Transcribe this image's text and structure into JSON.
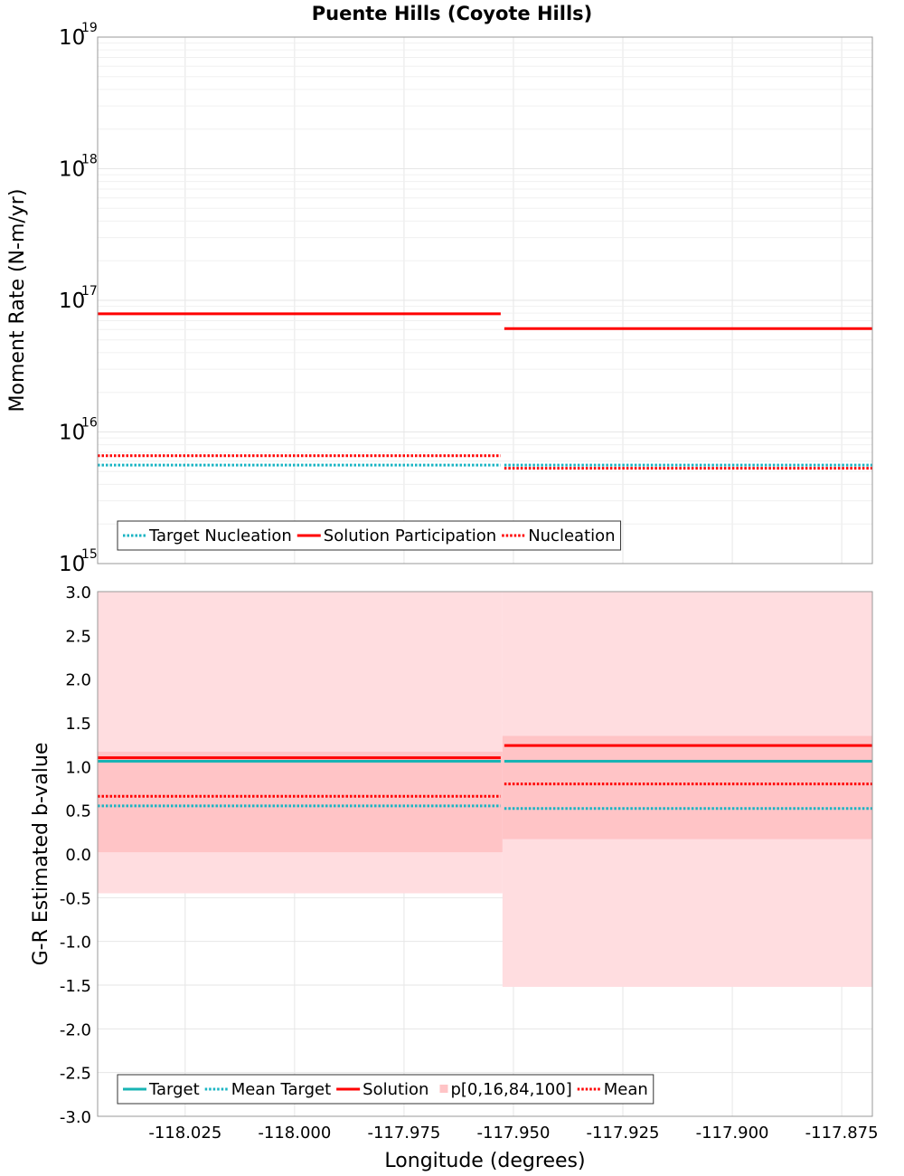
{
  "chart_data": [
    {
      "type": "line",
      "title": "Puente Hills (Coyote Hills)",
      "ylabel": "Moment Rate (N-m/yr)",
      "yscale": "log",
      "ylim": [
        1000000000000000.0,
        1e+19
      ],
      "xlim": [
        -118.045,
        -117.868
      ],
      "y_tick_labels": [
        {
          "base": "10",
          "exp": "15",
          "value": 1000000000000000.0
        },
        {
          "base": "10",
          "exp": "16",
          "value": 1e+16
        },
        {
          "base": "10",
          "exp": "17",
          "value": 1e+17
        },
        {
          "base": "10",
          "exp": "18",
          "value": 1e+18
        },
        {
          "base": "10",
          "exp": "19",
          "value": 1e+19
        }
      ],
      "series": [
        {
          "name": "Target Nucleation",
          "style": "dotted",
          "color": "#19b4c3",
          "segments": [
            {
              "x": [
                -118.045,
                -117.9525
              ],
              "y": 5600000000000000.0
            },
            {
              "x": [
                -117.9525,
                -117.868
              ],
              "y": 5600000000000000.0
            }
          ]
        },
        {
          "name": "Solution Participation",
          "style": "solid",
          "color": "#ff0000",
          "segments": [
            {
              "x": [
                -118.045,
                -117.9525
              ],
              "y": 7.9e+16
            },
            {
              "x": [
                -117.9525,
                -117.868
              ],
              "y": 6.1e+16
            }
          ]
        },
        {
          "name": "Nucleation",
          "style": "dotted",
          "color": "#ff0000",
          "segments": [
            {
              "x": [
                -118.045,
                -117.9525
              ],
              "y": 6600000000000000.0
            },
            {
              "x": [
                -117.9525,
                -117.868
              ],
              "y": 5300000000000000.0
            }
          ]
        }
      ],
      "legend": [
        "Target Nucleation",
        "Solution Participation",
        "Nucleation"
      ],
      "legend_position": "bottom-left"
    },
    {
      "type": "line",
      "ylabel": "G-R Estimated b-value",
      "xlabel": "Longitude (degrees)",
      "ylim": [
        -3.0,
        3.0
      ],
      "xlim": [
        -118.045,
        -117.868
      ],
      "y_ticks": [
        "-3.0",
        "-2.5",
        "-2.0",
        "-1.5",
        "-1.0",
        "-0.5",
        "0.0",
        "0.5",
        "1.0",
        "1.5",
        "2.0",
        "2.5",
        "3.0"
      ],
      "x_ticks": [
        "-118.025",
        "-118.000",
        "-117.975",
        "-117.950",
        "-117.925",
        "-117.900",
        "-117.875"
      ],
      "bands": [
        {
          "name": "p[0,16,84,100]",
          "segments": [
            {
              "x": [
                -118.045,
                -117.9525
              ],
              "p0": -0.45,
              "p16": 0.02,
              "p84": 1.17,
              "p100": 3.0
            },
            {
              "x": [
                -117.9525,
                -117.868
              ],
              "p0": -1.52,
              "p16": 0.17,
              "p84": 1.35,
              "p100": 3.0
            }
          ]
        }
      ],
      "series": [
        {
          "name": "Target",
          "style": "solid",
          "color": "#19b4b4",
          "segments": [
            {
              "x": [
                -118.045,
                -117.9525
              ],
              "y": 1.06
            },
            {
              "x": [
                -117.9525,
                -117.868
              ],
              "y": 1.06
            }
          ]
        },
        {
          "name": "Mean Target",
          "style": "dotted",
          "color": "#19b4c3",
          "segments": [
            {
              "x": [
                -118.045,
                -117.9525
              ],
              "y": 0.55
            },
            {
              "x": [
                -117.9525,
                -117.868
              ],
              "y": 0.52
            }
          ]
        },
        {
          "name": "Solution",
          "style": "solid",
          "color": "#ff0000",
          "segments": [
            {
              "x": [
                -118.045,
                -117.9525
              ],
              "y": 1.1
            },
            {
              "x": [
                -117.9525,
                -117.868
              ],
              "y": 1.24
            }
          ]
        },
        {
          "name": "Mean",
          "style": "dotted",
          "color": "#ff0000",
          "segments": [
            {
              "x": [
                -118.045,
                -117.9525
              ],
              "y": 0.66
            },
            {
              "x": [
                -117.9525,
                -117.868
              ],
              "y": 0.8
            }
          ]
        }
      ],
      "legend": [
        "Target",
        "Mean Target",
        "Solution",
        "p[0,16,84,100]",
        "Mean"
      ],
      "legend_position": "bottom-left"
    }
  ]
}
